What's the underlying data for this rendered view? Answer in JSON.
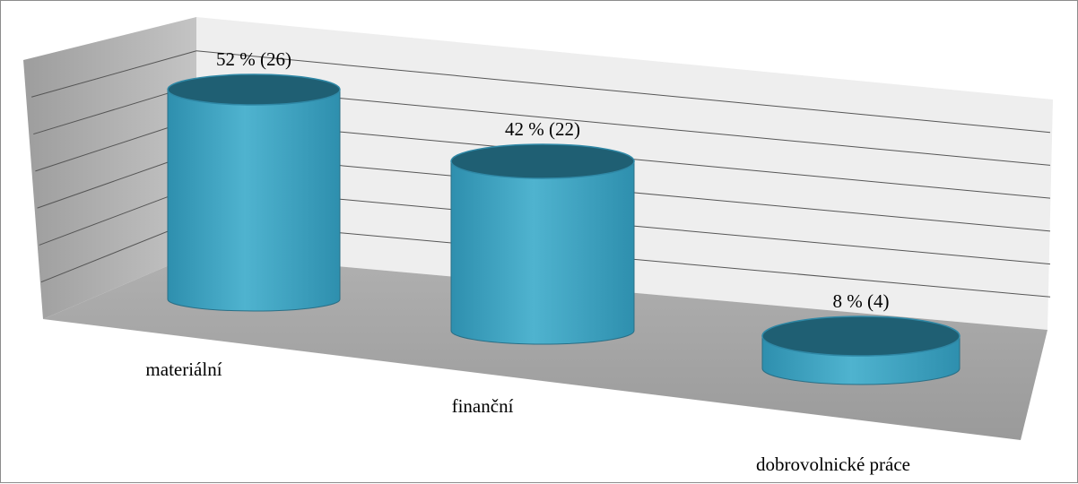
{
  "chart_data": {
    "type": "bar",
    "bar_shape": "cylinder-3d",
    "categories": [
      "materiální",
      "finanční",
      "dobrovolnické práce"
    ],
    "values": [
      52,
      42,
      8
    ],
    "counts": [
      26,
      22,
      4
    ],
    "data_labels": [
      "52 % (26)",
      "42 % (22)",
      "8 % (4)"
    ],
    "title": "",
    "xlabel": "",
    "ylabel": "",
    "ylim": [
      0,
      60
    ],
    "grid": true,
    "legend": "none",
    "colors": {
      "bar": "#2e8fae",
      "bar_highlight": "#4fb3cf",
      "bar_top": "#1f5f73",
      "back_wall": "#eeeeee",
      "side_wall": "#b5b5b5",
      "floor": "#a8a8a8",
      "grid": "#555555"
    }
  }
}
